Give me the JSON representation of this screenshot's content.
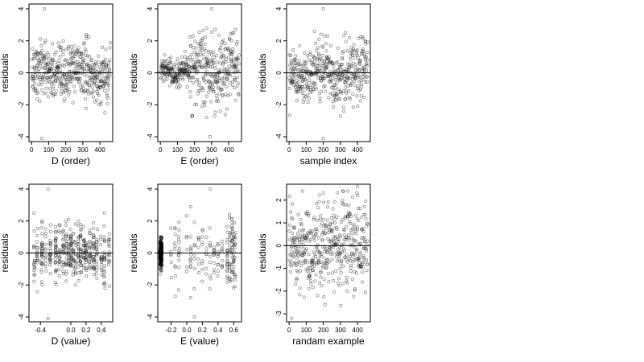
{
  "chart_data": [
    {
      "type": "scatter",
      "xlabel": "D (order)",
      "ylabel": "residuals",
      "xlim": [
        -15,
        475
      ],
      "ylim": [
        -4.3,
        4.3
      ],
      "xticks": [
        0,
        100,
        200,
        300,
        400
      ],
      "yticks": [
        -4,
        -2,
        0,
        2,
        4
      ],
      "hline": 0,
      "points": {
        "description": "~460 points, x = 1..460, residuals mostly within [-2.5, 2.7]; outliers near (75,4.0) and (60,-4.1); peak ~2.3 near x=320",
        "n": 460,
        "x_range": [
          1,
          460
        ],
        "outliers": [
          [
            75,
            4.0
          ],
          [
            60,
            -4.1
          ],
          [
            320,
            2.3
          ],
          [
            430,
            -2.5
          ]
        ]
      }
    },
    {
      "type": "scatter",
      "xlabel": "E (order)",
      "ylabel": "residuals",
      "xlim": [
        -15,
        475
      ],
      "ylim": [
        -4.3,
        4.3
      ],
      "xticks": [
        0,
        100,
        200,
        300,
        400
      ],
      "yticks": [
        -4,
        -2,
        0,
        2,
        4
      ],
      "hline": 0,
      "points": {
        "description": "~460 points; tight band (|r|<1) for x<170, widening spread for x>170; outliers near (300,4.0) and (290,-4.0)",
        "n": 460,
        "x_range": [
          1,
          460
        ],
        "outliers": [
          [
            300,
            4.0
          ],
          [
            290,
            -4.0
          ],
          [
            270,
            2.8
          ],
          [
            270,
            -2.8
          ]
        ]
      }
    },
    {
      "type": "scatter",
      "xlabel": "sample index",
      "ylabel": "residuals",
      "xlim": [
        -15,
        475
      ],
      "ylim": [
        -4.3,
        4.3
      ],
      "xticks": [
        0,
        100,
        200,
        300,
        400
      ],
      "yticks": [
        -4,
        -2,
        0,
        2,
        4
      ],
      "hline": 0,
      "points": {
        "description": "~460 points, residuals within about [-2.6, 2.6]; outliers near (200,4.0) and (200,-4.1)",
        "n": 460,
        "x_range": [
          1,
          460
        ],
        "outliers": [
          [
            200,
            4.0
          ],
          [
            200,
            -4.1
          ],
          [
            330,
            2.5
          ],
          [
            300,
            -2.7
          ]
        ]
      }
    },
    {
      "type": "scatter",
      "xlabel": "D (value)",
      "ylabel": "residuals",
      "xlim": [
        -0.55,
        0.55
      ],
      "ylim": [
        -4.3,
        4.3
      ],
      "xticks": [
        -0.4,
        0.0,
        0.2,
        0.4
      ],
      "xtick_labels": [
        "-0.4",
        "0.0",
        "0.2",
        "0.4"
      ],
      "yticks": [
        -4,
        -2,
        0,
        2,
        4
      ],
      "hline": 0,
      "points": {
        "description": "~460 points in vertical columns at discrete D values between -0.5 and 0.5; outliers near (-0.3,4.0) and (-0.3,-4.1)",
        "n": 460,
        "x_range": [
          -0.5,
          0.5
        ],
        "outliers": [
          [
            -0.3,
            4.0
          ],
          [
            -0.3,
            -4.1
          ],
          [
            0.1,
            2.0
          ],
          [
            0.45,
            -2.2
          ]
        ]
      }
    },
    {
      "type": "scatter",
      "xlabel": "E (value)",
      "ylabel": "residuals",
      "xlim": [
        -0.37,
        0.7
      ],
      "ylim": [
        -4.3,
        4.3
      ],
      "xticks": [
        -0.2,
        0.0,
        0.2,
        0.4,
        0.6
      ],
      "xtick_labels": [
        "-0.2",
        "0.0",
        "0.2",
        "0.4",
        "0.6"
      ],
      "yticks": [
        -4,
        -2,
        0,
        2,
        4
      ],
      "hline": 0,
      "points": {
        "description": "~460 points; dense vertical column at E ≈ -0.33 spanning about [-1.3, 1.0]; sparse columns at larger E values, dense column near 0.55–0.6; outliers near (0.3,4.0) and (0.1,-4.0)",
        "n": 460,
        "x_range": [
          -0.33,
          0.65
        ],
        "outliers": [
          [
            0.3,
            4.0
          ],
          [
            0.1,
            -4.0
          ],
          [
            0.05,
            2.9
          ],
          [
            0.05,
            -2.8
          ]
        ]
      }
    },
    {
      "type": "scatter",
      "xlabel": "randam example",
      "ylabel": "residuals",
      "xlim": [
        -15,
        475
      ],
      "ylim": [
        -3.35,
        2.7
      ],
      "xticks": [
        0,
        100,
        200,
        300,
        400
      ],
      "yticks": [
        -3,
        -2,
        -1,
        0,
        1,
        2
      ],
      "hline": 0,
      "points": {
        "description": "~460 random normal points, x = 1..460, residuals roughly within [-3.2, 2.6]",
        "n": 460,
        "x_range": [
          1,
          460
        ],
        "outliers": [
          [
            15,
            -3.2
          ],
          [
            400,
            2.6
          ],
          [
            200,
            2.3
          ],
          [
            210,
            -2.6
          ]
        ]
      }
    }
  ]
}
